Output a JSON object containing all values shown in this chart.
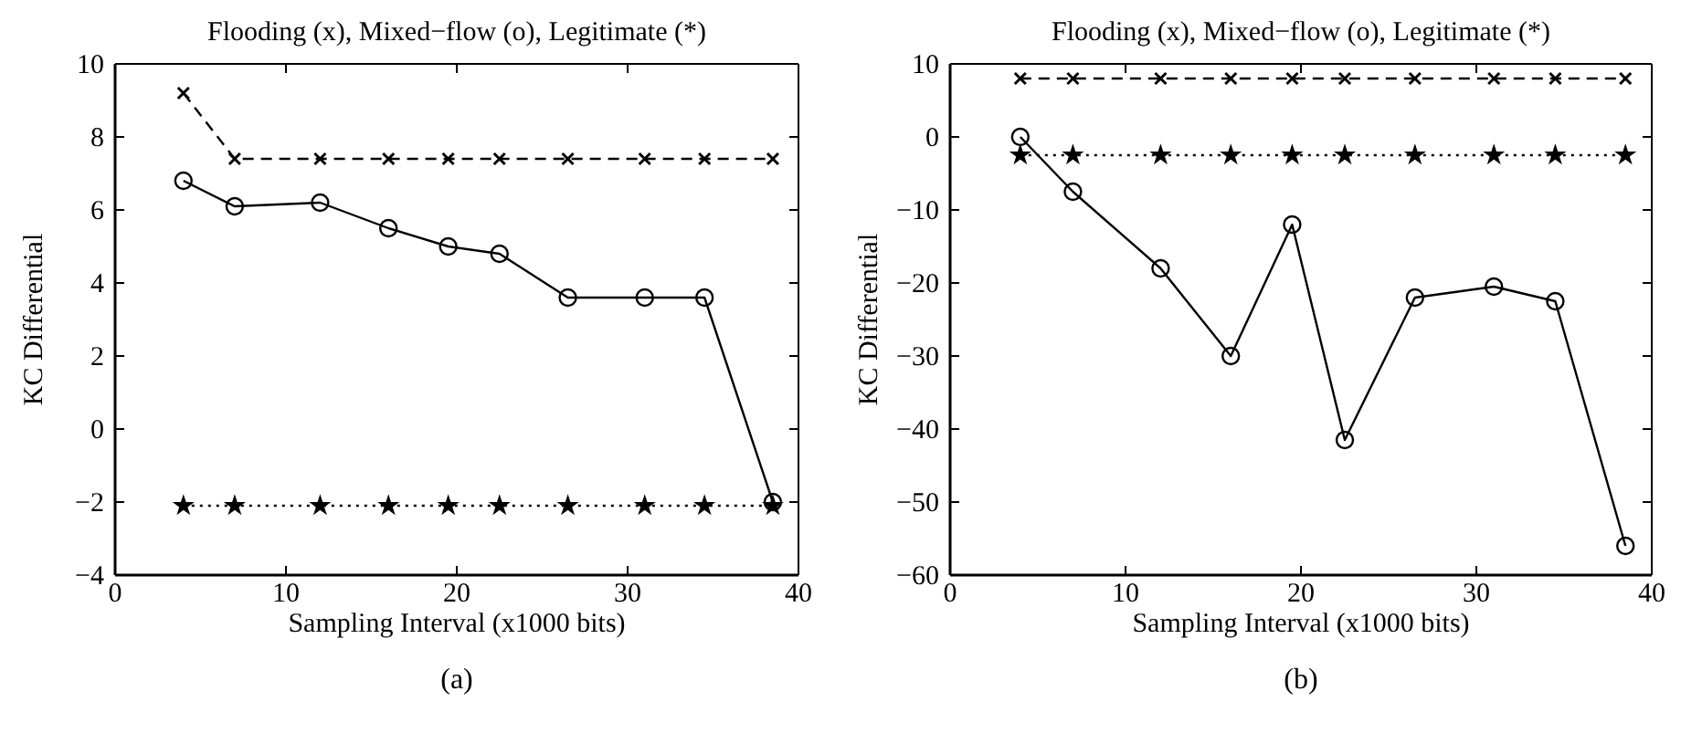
{
  "chart_data": [
    {
      "type": "line",
      "title": "Flooding (x), Mixed−flow (o), Legitimate (*)",
      "xlabel": "Sampling Interval (x1000 bits)",
      "ylabel": "KC Differential",
      "annotations": [
        "(a)"
      ],
      "x": [
        4,
        7,
        12,
        16,
        19.5,
        22.5,
        26.5,
        31,
        34.5,
        38.5
      ],
      "series": [
        {
          "color": "#000000",
          "marker": "cross",
          "line_style": "dashed",
          "values": [
            9.2,
            7.4,
            7.4,
            7.4,
            7.4,
            7.4,
            7.4,
            7.4,
            7.4,
            7.4
          ]
        },
        {
          "color": "#000000",
          "marker": "circle",
          "line_style": "solid",
          "values": [
            6.8,
            6.1,
            6.2,
            5.5,
            5.0,
            4.8,
            3.6,
            3.6,
            3.6,
            -2.0
          ]
        },
        {
          "color": "#000000",
          "marker": "star",
          "line_style": "dotted",
          "values": [
            -2.1,
            -2.1,
            -2.1,
            -2.1,
            -2.1,
            -2.1,
            -2.1,
            -2.1,
            -2.1,
            -2.1
          ]
        }
      ],
      "xlim": [
        0,
        40
      ],
      "xticks": [
        0,
        10,
        20,
        30,
        40
      ],
      "ylim": [
        -4,
        10
      ],
      "yticks": [
        -4,
        -2,
        0,
        2,
        4,
        6,
        8,
        10
      ],
      "grid": false
    },
    {
      "type": "line",
      "title": "Flooding (x), Mixed−flow (o), Legitimate (*)",
      "xlabel": "Sampling Interval (x1000 bits)",
      "ylabel": "KC Differential",
      "annotations": [
        "(b)"
      ],
      "x": [
        4,
        7,
        12,
        16,
        19.5,
        22.5,
        26.5,
        31,
        34.5,
        38.5
      ],
      "series": [
        {
          "color": "#000000",
          "marker": "cross",
          "line_style": "dashed",
          "values": [
            8,
            8,
            8,
            8,
            8,
            8,
            8,
            8,
            8,
            8
          ]
        },
        {
          "color": "#000000",
          "marker": "circle",
          "line_style": "solid",
          "values": [
            0,
            -7.5,
            -18,
            -30,
            -12,
            -41.5,
            -22,
            -20.5,
            -22.5,
            -56
          ]
        },
        {
          "color": "#000000",
          "marker": "star",
          "line_style": "dotted",
          "values": [
            -2.5,
            -2.5,
            -2.5,
            -2.5,
            -2.5,
            -2.5,
            -2.5,
            -2.5,
            -2.5,
            -2.5
          ]
        }
      ],
      "xlim": [
        0,
        40
      ],
      "xticks": [
        0,
        10,
        20,
        30,
        40
      ],
      "ylim": [
        -60,
        10
      ],
      "yticks": [
        -60,
        -50,
        -40,
        -30,
        -20,
        -10,
        0,
        10
      ],
      "grid": false
    }
  ]
}
